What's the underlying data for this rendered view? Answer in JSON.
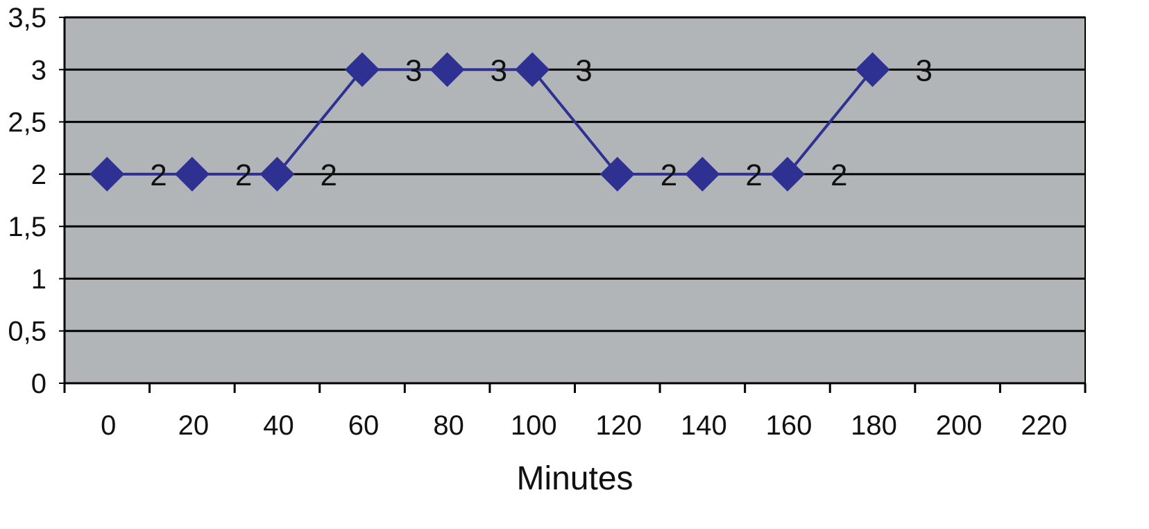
{
  "chart_data": {
    "type": "line",
    "title": "",
    "xlabel": "Minutes",
    "ylabel": "",
    "x_tick_labels": [
      "0",
      "20",
      "40",
      "60",
      "80",
      "100",
      "120",
      "140",
      "160",
      "180",
      "200",
      "220"
    ],
    "y_tick_labels": [
      "0",
      "0,5",
      "1",
      "1,5",
      "2",
      "2,5",
      "3",
      "3,5"
    ],
    "ylim": [
      0,
      3.5
    ],
    "grid": true,
    "legend": "none",
    "series": [
      {
        "values": [
          2,
          2,
          2,
          3,
          3,
          3,
          2,
          2,
          2,
          3
        ],
        "data_labels": [
          "2",
          "2",
          "2",
          "3",
          "3",
          "3",
          "2",
          "2",
          "2",
          "3"
        ],
        "color": "#2E3192",
        "marker": "diamond"
      }
    ],
    "plot_background": "#B2B5B8",
    "grid_color": "#000000"
  }
}
